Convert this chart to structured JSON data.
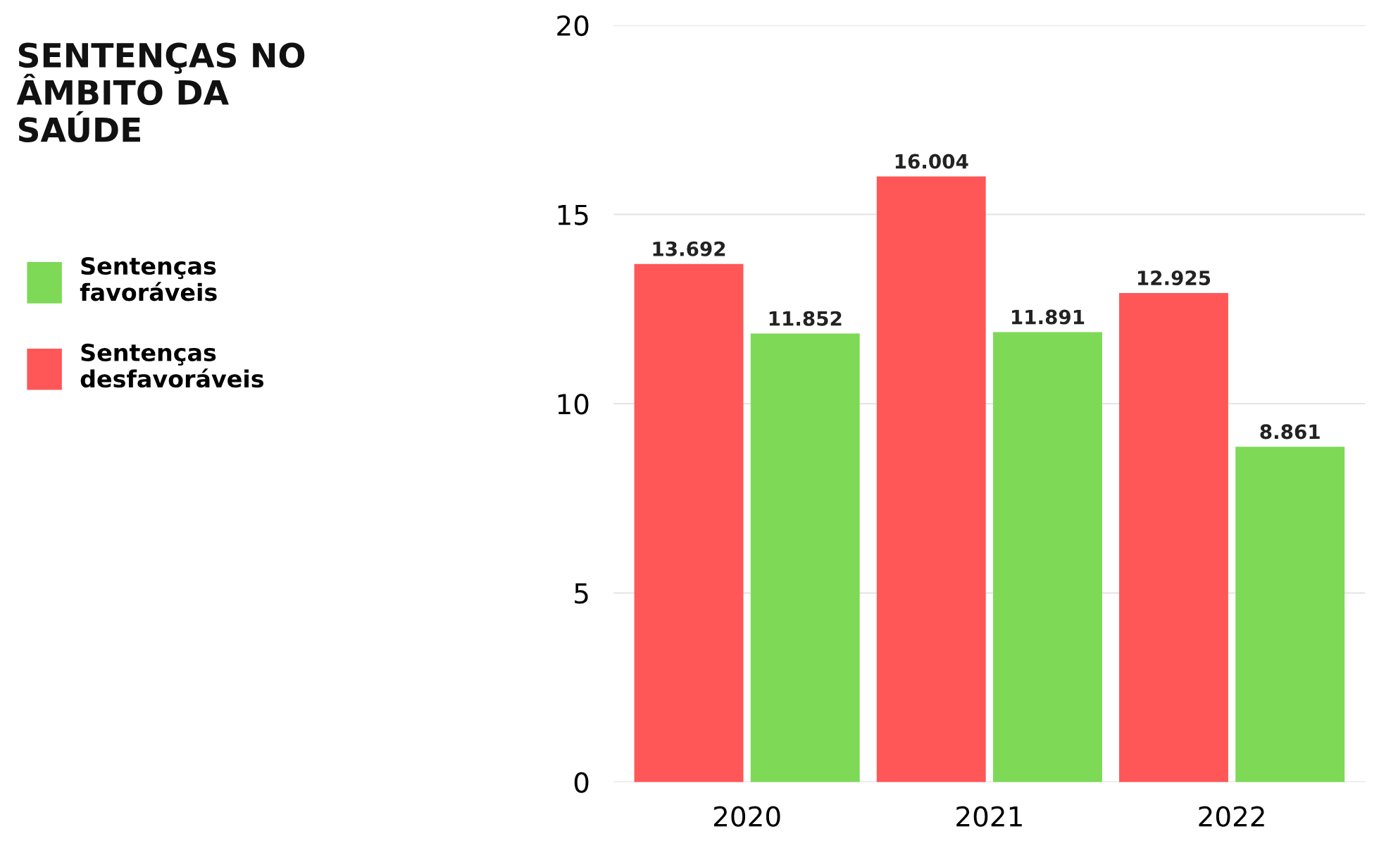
{
  "chart_data": {
    "type": "bar",
    "title": "SENTENÇAS NO\nÂMBITO DA\nSAÚDE",
    "categories": [
      "2020",
      "2021",
      "2022"
    ],
    "series": [
      {
        "name": "Sentenças\ndesfavoráveis",
        "color": "#ff5757",
        "values": [
          13.692,
          16.004,
          12.925
        ]
      },
      {
        "name": "Sentenças\nfavoráveis",
        "color": "#7ed957",
        "values": [
          11.852,
          11.891,
          8.861
        ]
      }
    ],
    "ylim": [
      0,
      20
    ],
    "yticks": [
      0,
      5,
      10,
      15,
      20
    ],
    "grid": "y",
    "legend": "left",
    "data_labels": true
  }
}
